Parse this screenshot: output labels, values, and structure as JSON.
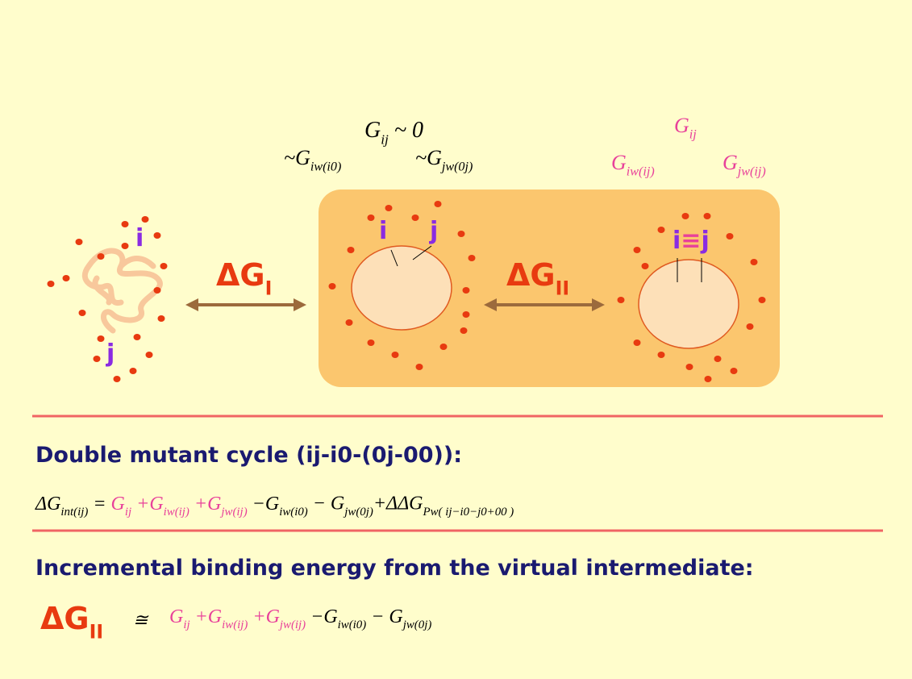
{
  "top_center": {
    "line1": [
      {
        "t": "G",
        "s": "ij"
      },
      {
        "t": " ~ 0"
      }
    ],
    "term_left": [
      {
        "t": "~G",
        "s": "iw(i0)"
      }
    ],
    "term_right": [
      {
        "t": "~G",
        "s": "jw(0j)"
      }
    ]
  },
  "top_right": {
    "line1": [
      {
        "t": "G",
        "s": "ij",
        "color": "#e8409a"
      }
    ],
    "term_left": [
      {
        "t": "G",
        "s": "iw(ij)",
        "color": "#e8409a"
      }
    ],
    "term_right": [
      {
        "t": "G",
        "s": "jw(ij)",
        "color": "#e8409a"
      }
    ]
  },
  "unfolded_labels": {
    "i": [
      {
        "t": "i"
      }
    ],
    "j": [
      {
        "t": "j"
      }
    ]
  },
  "intermediate_labels": {
    "i": [
      {
        "t": "i"
      }
    ],
    "j": [
      {
        "t": "j"
      }
    ]
  },
  "bound_label": [
    {
      "t": "i"
    },
    {
      "t": "≡",
      "color": "#e8409a"
    },
    {
      "t": "j"
    }
  ],
  "arrow_I": [
    {
      "t": "ΔG",
      "s": "I"
    }
  ],
  "arrow_II": [
    {
      "t": "ΔG",
      "s": "II"
    }
  ],
  "heading1": [
    {
      "t": "Double mutant cycle (ij-i0-(0j-00)):"
    }
  ],
  "equation1": [
    {
      "t": "ΔG",
      "s": "int(ij)"
    },
    {
      "t": "  =  "
    },
    {
      "t": "G",
      "s": "ij",
      "color": "#e8409a"
    },
    {
      "t": " +G",
      "s": "iw(ij)",
      "color": "#e8409a"
    },
    {
      "t": "  +G",
      "s": "jw(ij)",
      "color": "#e8409a"
    },
    {
      "t": "  −G",
      "s": "iw(i0)"
    },
    {
      "t": " − G",
      "s": "jw(0j)"
    },
    {
      "t": "+ΔΔG",
      "s": "Pw( ij−i0−j0+00 )"
    }
  ],
  "heading2": [
    {
      "t": "Incremental binding energy from the virtual intermediate:"
    }
  ],
  "equation2": {
    "lhs": [
      {
        "t": "ΔG",
        "s": "II"
      }
    ],
    "relation": [
      {
        "t": "≅"
      }
    ],
    "rhs": [
      {
        "t": "G",
        "s": "ij",
        "color": "#e8409a"
      },
      {
        "t": " +G",
        "s": "iw(ij)",
        "color": "#e8409a"
      },
      {
        "t": "  +G",
        "s": "jw(ij)",
        "color": "#e8409a"
      },
      {
        "t": "  −G",
        "s": "iw(i0)"
      },
      {
        "t": " − G",
        "s": "jw(0j)"
      }
    ]
  }
}
